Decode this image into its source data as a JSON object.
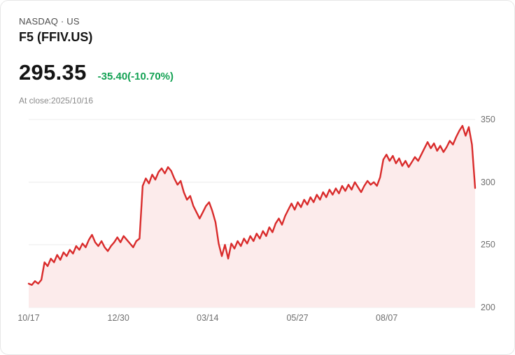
{
  "header": {
    "exchange": "NASDAQ · US",
    "symbol_title": "F5 (FFIV.US)",
    "price": "295.35",
    "change": "-35.40(-10.70%)",
    "change_color": "#14a254",
    "as_of": "At close:2025/10/16"
  },
  "chart_data": {
    "type": "area",
    "title": "F5 (FFIV.US) one-year price chart",
    "ylim": [
      200,
      350
    ],
    "y_ticks": [
      350,
      300,
      250,
      200
    ],
    "x_ticks": [
      {
        "label": "10/17",
        "pos": 0.0
      },
      {
        "label": "12/30",
        "pos": 0.201
      },
      {
        "label": "03/14",
        "pos": 0.401
      },
      {
        "label": "05/27",
        "pos": 0.602
      },
      {
        "label": "08/07",
        "pos": 0.802
      }
    ],
    "line_color": "#d92b2b",
    "fill_color": "#fcebeb",
    "grid_color": "#ececec",
    "grid": true,
    "legend": false,
    "prices": [
      219,
      218,
      221,
      219,
      222,
      236,
      233,
      239,
      236,
      242,
      238,
      244,
      241,
      246,
      243,
      249,
      246,
      251,
      248,
      254,
      258,
      252,
      249,
      253,
      248,
      245,
      249,
      252,
      256,
      252,
      257,
      254,
      251,
      248,
      253,
      255,
      297,
      303,
      299,
      306,
      302,
      308,
      311,
      307,
      312,
      309,
      303,
      298,
      301,
      292,
      286,
      289,
      281,
      276,
      271,
      276,
      281,
      284,
      277,
      268,
      251,
      241,
      250,
      239,
      251,
      247,
      253,
      249,
      255,
      251,
      257,
      253,
      259,
      255,
      261,
      257,
      264,
      260,
      267,
      271,
      266,
      273,
      278,
      283,
      278,
      284,
      280,
      286,
      282,
      288,
      284,
      290,
      286,
      292,
      288,
      294,
      290,
      295,
      291,
      297,
      293,
      298,
      294,
      300,
      296,
      292,
      297,
      301,
      298,
      300,
      297,
      304,
      318,
      322,
      317,
      321,
      315,
      319,
      313,
      317,
      312,
      316,
      320,
      317,
      322,
      327,
      332,
      327,
      331,
      325,
      329,
      324,
      328,
      333,
      330,
      336,
      341,
      345,
      337,
      344,
      330,
      295.35
    ]
  }
}
